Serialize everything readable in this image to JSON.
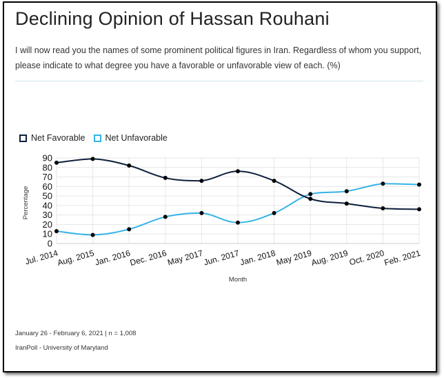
{
  "page": {
    "title": "Declining Opinion of Hassan Rouhani",
    "subtitle": "I will now read you the names of some prominent political figures in Iran. Regardless of whom you support, please indicate to what degree you have a favorable or unfavorable view of each. (%)",
    "footer_date": "January 26 - February 6, 2021 | n = 1,008",
    "footer_source": "IranPoll - University of Maryland"
  },
  "colors": {
    "net_favorable": "#0d1f3c",
    "net_unfavorable": "#33b3e6",
    "grid": "#e6e6e6"
  },
  "chart_data": {
    "type": "line",
    "title": "",
    "xlabel": "Month",
    "ylabel": "Percentage",
    "ylim": [
      0,
      90
    ],
    "yticks": [
      0,
      10,
      20,
      30,
      40,
      50,
      60,
      70,
      80,
      90
    ],
    "grid": true,
    "legend_position": "top-left",
    "categories": [
      "Jul. 2014",
      "Aug. 2015",
      "Jan. 2016",
      "Dec. 2016",
      "May 2017",
      "Jun. 2017",
      "Jan. 2018",
      "May 2019",
      "Aug. 2019",
      "Oct. 2020",
      "Feb. 2021"
    ],
    "series": [
      {
        "name": "Net Favorable",
        "values": [
          85,
          89,
          82,
          69,
          66,
          76,
          66,
          47,
          42,
          37,
          36
        ]
      },
      {
        "name": "Net Unfavorable",
        "values": [
          13,
          9,
          15,
          28,
          32,
          22,
          32,
          52,
          55,
          63,
          62
        ]
      }
    ]
  }
}
